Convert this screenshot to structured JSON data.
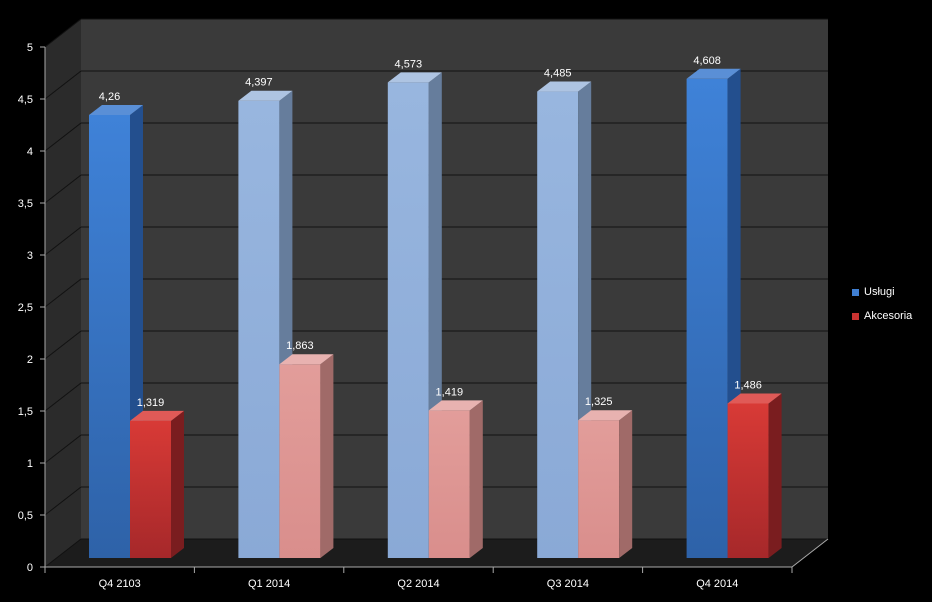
{
  "chart_data": {
    "type": "bar",
    "categories": [
      "Q4 2103",
      "Q1 2014",
      "Q2 2014",
      "Q3 2014",
      "Q4 2014"
    ],
    "series": [
      {
        "name": "Usługi",
        "values": [
          4.26,
          4.397,
          4.573,
          4.485,
          4.608
        ],
        "labels": [
          "4,26",
          "4,397",
          "4,573",
          "4,485",
          "4,608"
        ],
        "color": "#3f7fd2",
        "highlight": [
          true,
          false,
          false,
          false,
          true
        ],
        "muted_color": "#94b3dd"
      },
      {
        "name": "Akcesoria",
        "values": [
          1.319,
          1.863,
          1.419,
          1.325,
          1.486
        ],
        "labels": [
          "1,319",
          "1,863",
          "1,419",
          "1,325",
          "1,486"
        ],
        "color": "#c93331",
        "highlight": [
          true,
          false,
          false,
          false,
          true
        ],
        "muted_color": "#de9795"
      }
    ],
    "ylim": [
      0,
      5
    ],
    "yticks": [
      0,
      0.5,
      1,
      1.5,
      2,
      2.5,
      3,
      3.5,
      4,
      4.5,
      5
    ],
    "ytick_labels": [
      "0",
      "0,5",
      "1",
      "1,5",
      "2",
      "2,5",
      "3",
      "3,5",
      "4",
      "4,5",
      "5"
    ],
    "grid": true,
    "legend": "right",
    "background": "#3a3a3a",
    "floor": "#1c1c1c"
  }
}
